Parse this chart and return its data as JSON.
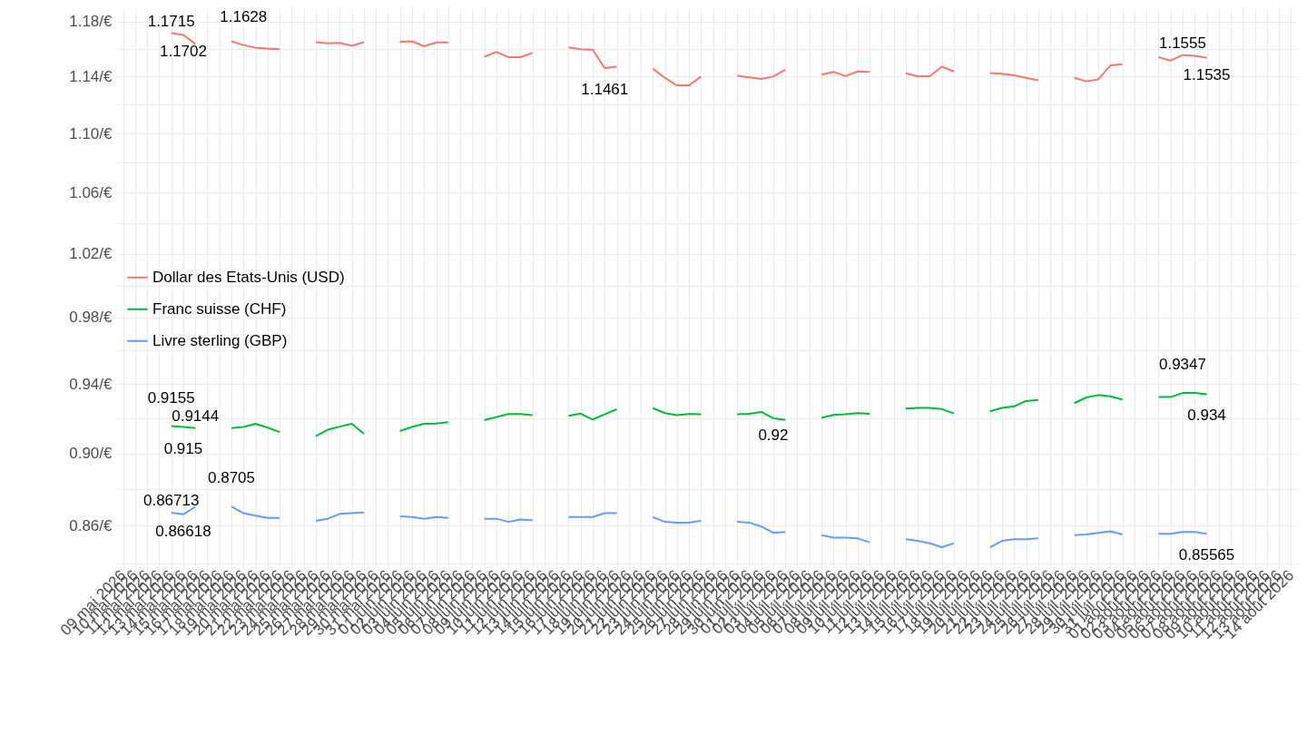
{
  "chart_data": {
    "type": "line",
    "log": true,
    "grid": true,
    "legend": "left",
    "categories": [
      "09 mai 2026",
      "10 mai 2026",
      "11 mai 2026",
      "12 mai 2026",
      "13 mai 2026",
      "14 mai 2026",
      "15 mai 2026",
      "16 mai 2026",
      "17 mai 2026",
      "18 mai 2026",
      "19 mai 2026",
      "20 mai 2026",
      "21 mai 2026",
      "22 mai 2026",
      "23 mai 2026",
      "24 mai 2026",
      "25 mai 2026",
      "26 mai 2026",
      "27 mai 2026",
      "28 mai 2026",
      "29 mai 2026",
      "30 mai 2026",
      "31 mai 2026",
      "01 juin 2026",
      "02 juin 2026",
      "03 juin 2026",
      "04 juin 2026",
      "05 juin 2026",
      "06 juin 2026",
      "07 juin 2026",
      "08 juin 2026",
      "09 juin 2026",
      "10 juin 2026",
      "11 juin 2026",
      "12 juin 2026",
      "13 juin 2026",
      "14 juin 2026",
      "15 juin 2026",
      "16 juin 2026",
      "17 juin 2026",
      "18 juin 2026",
      "19 juin 2026",
      "20 juin 2026",
      "21 juin 2026",
      "22 juin 2026",
      "23 juin 2026",
      "24 juin 2026",
      "25 juin 2026",
      "26 juin 2026",
      "27 juin 2026",
      "28 juin 2026",
      "29 juin 2026",
      "30 juin 2026",
      "01 juil. 2026",
      "02 juil. 2026",
      "03 juil. 2026",
      "04 juil. 2026",
      "05 juil. 2026",
      "06 juil. 2026",
      "07 juil. 2026",
      "08 juil. 2026",
      "09 juil. 2026",
      "10 juil. 2026",
      "11 juil. 2026",
      "12 juil. 2026",
      "13 juil. 2026",
      "14 juil. 2026",
      "15 juil. 2026",
      "16 juil. 2026",
      "17 juil. 2026",
      "18 juil. 2026",
      "19 juil. 2026",
      "20 juil. 2026",
      "21 juil. 2026",
      "22 juil. 2026",
      "23 juil. 2026",
      "24 juil. 2026",
      "25 juil. 2026",
      "26 juil. 2026",
      "27 juil. 2026",
      "28 juil. 2026",
      "29 juil. 2026",
      "30 juil. 2026",
      "31 juil. 2026",
      "01 août 2026",
      "02 août 2026",
      "03 août 2026",
      "04 août 2026",
      "05 août 2026",
      "06 août 2026",
      "07 août 2026",
      "08 août 2026",
      "09 août 2026",
      "10 août 2026",
      "11 août 2026",
      "12 août 2026",
      "13 août 2026",
      "14 août 2026"
    ],
    "series": [
      {
        "name": "Dollar des Etats-Unis (USD)",
        "color": "#f8766d",
        "values": [
          null,
          null,
          null,
          null,
          1.1715,
          1.1702,
          1.1636,
          null,
          null,
          1.1655,
          1.1628,
          1.1608,
          1.1603,
          1.1597,
          null,
          null,
          1.1649,
          1.1641,
          1.1644,
          1.1622,
          1.1649,
          null,
          null,
          1.1652,
          1.1655,
          1.1619,
          1.1647,
          1.1647,
          null,
          null,
          1.1543,
          1.1577,
          1.154,
          1.154,
          1.1571,
          null,
          null,
          1.1611,
          1.1597,
          1.1594,
          1.1461,
          1.1471,
          null,
          null,
          1.1457,
          1.1391,
          1.1337,
          1.1337,
          1.14,
          null,
          null,
          1.1406,
          1.1394,
          1.1383,
          1.14,
          1.1449,
          null,
          null,
          1.1414,
          1.1434,
          1.1403,
          1.1437,
          1.1434,
          null,
          null,
          1.1423,
          1.1403,
          1.1403,
          1.1471,
          1.1437,
          null,
          null,
          1.1426,
          1.142,
          1.1409,
          1.1391,
          1.1374,
          null,
          null,
          1.1391,
          1.1366,
          1.138,
          1.148,
          1.1489,
          null,
          null,
          1.154,
          1.1514,
          1.1555,
          1.1549,
          1.1535,
          null,
          null,
          null,
          null,
          null,
          null,
          null
        ]
      },
      {
        "name": "Franc suisse (CHF)",
        "color": "#00ba38",
        "values": [
          null,
          null,
          null,
          null,
          0.9155,
          0.915,
          0.9144,
          null,
          null,
          0.9144,
          0.915,
          0.9168,
          0.9146,
          0.9121,
          null,
          null,
          0.9098,
          0.9134,
          0.9152,
          0.9168,
          0.9111,
          null,
          null,
          0.9127,
          0.915,
          0.9168,
          0.917,
          0.9177,
          null,
          null,
          0.9189,
          0.9207,
          0.9225,
          0.9225,
          0.9218,
          null,
          null,
          0.9214,
          0.9227,
          0.9193,
          0.9223,
          0.9252,
          null,
          null,
          0.9259,
          0.923,
          0.9218,
          0.9225,
          0.9223,
          null,
          null,
          0.9223,
          0.9226,
          0.9237,
          0.92,
          0.9191,
          null,
          null,
          0.9202,
          0.9219,
          0.9223,
          0.923,
          0.9226,
          null,
          null,
          0.9256,
          0.926,
          0.926,
          0.9253,
          0.9228,
          null,
          null,
          0.924,
          0.926,
          0.9269,
          0.93,
          0.9307,
          null,
          null,
          0.9288,
          0.9321,
          0.9335,
          0.9328,
          0.9309,
          null,
          null,
          0.9323,
          0.9323,
          0.9347,
          0.9347,
          0.934,
          null,
          null,
          null,
          null,
          null,
          null,
          null
        ]
      },
      {
        "name": "Livre sterling (GBP)",
        "color": "#619cff",
        "values": [
          null,
          null,
          null,
          null,
          0.86713,
          0.86618,
          0.8703,
          null,
          null,
          0.8705,
          0.8668,
          0.8655,
          0.8642,
          0.8642,
          null,
          null,
          0.8626,
          0.8638,
          0.8664,
          0.8668,
          0.8672,
          null,
          null,
          0.8651,
          0.8647,
          0.8638,
          0.8647,
          0.8642,
          null,
          null,
          0.8638,
          0.8638,
          0.8621,
          0.8634,
          0.863,
          null,
          null,
          0.8647,
          0.8647,
          0.8647,
          0.8668,
          0.8668,
          null,
          null,
          0.8647,
          0.8621,
          0.8617,
          0.8617,
          0.8626,
          null,
          null,
          0.8621,
          0.8617,
          0.8596,
          0.8562,
          0.8566,
          null,
          null,
          0.8549,
          0.8536,
          0.8536,
          0.8532,
          0.8511,
          null,
          null,
          0.8528,
          0.8519,
          0.8506,
          0.8485,
          0.8506,
          null,
          null,
          0.8485,
          0.8519,
          0.8528,
          0.8528,
          0.8532,
          null,
          null,
          0.8549,
          0.8553,
          0.8562,
          0.857,
          0.8553,
          null,
          null,
          0.8557,
          0.8557,
          0.8566,
          0.8566,
          0.85565,
          null,
          null,
          null,
          null,
          null,
          null,
          null
        ]
      }
    ],
    "ylim": [
      0.837,
      1.19
    ],
    "yticks": [
      {
        "value": 0.84,
        "label": null
      },
      {
        "value": 0.86,
        "label": "0.86/€"
      },
      {
        "value": 0.88,
        "label": null
      },
      {
        "value": 0.9,
        "label": "0.90/€"
      },
      {
        "value": 0.92,
        "label": null
      },
      {
        "value": 0.94,
        "label": "0.94/€"
      },
      {
        "value": 0.96,
        "label": null
      },
      {
        "value": 0.98,
        "label": "0.98/€"
      },
      {
        "value": 1.0,
        "label": null
      },
      {
        "value": 1.02,
        "label": "1.02/€"
      },
      {
        "value": 1.04,
        "label": null
      },
      {
        "value": 1.06,
        "label": "1.06/€"
      },
      {
        "value": 1.08,
        "label": null
      },
      {
        "value": 1.1,
        "label": "1.10/€"
      },
      {
        "value": 1.12,
        "label": null
      },
      {
        "value": 1.14,
        "label": "1.14/€"
      },
      {
        "value": 1.16,
        "label": null
      },
      {
        "value": 1.18,
        "label": "1.18/€"
      }
    ],
    "annotations": [
      {
        "text": "1.1715",
        "x": "13 mai 2026",
        "y": 1.1715
      },
      {
        "text": "1.1702",
        "x": "14 mai 2026",
        "y": 1.1702
      },
      {
        "text": "1.1628",
        "x": "19 mai 2026",
        "y": 1.1628
      },
      {
        "text": "1.1461",
        "x": "18 juin 2026",
        "y": 1.1461
      },
      {
        "text": "1.1555",
        "x": "05 août 2026",
        "y": 1.1555
      },
      {
        "text": "1.1535",
        "x": "07 août 2026",
        "y": 1.1535
      },
      {
        "text": "0.9155",
        "x": "13 mai 2026",
        "y": 0.9155
      },
      {
        "text": "0.915",
        "x": "14 mai 2026",
        "y": 0.915
      },
      {
        "text": "0.9144",
        "x": "15 mai 2026",
        "y": 0.9144
      },
      {
        "text": "0.92",
        "x": "02 juil. 2026",
        "y": 0.92
      },
      {
        "text": "0.9347",
        "x": "05 août 2026",
        "y": 0.9347
      },
      {
        "text": "0.934",
        "x": "07 août 2026",
        "y": 0.934
      },
      {
        "text": "0.86713",
        "x": "13 mai 2026",
        "y": 0.86713
      },
      {
        "text": "0.86618",
        "x": "14 mai 2026",
        "y": 0.86618
      },
      {
        "text": "0.8705",
        "x": "18 mai 2026",
        "y": 0.8705
      },
      {
        "text": "0.85565",
        "x": "07 août 2026",
        "y": 0.85565
      }
    ]
  }
}
